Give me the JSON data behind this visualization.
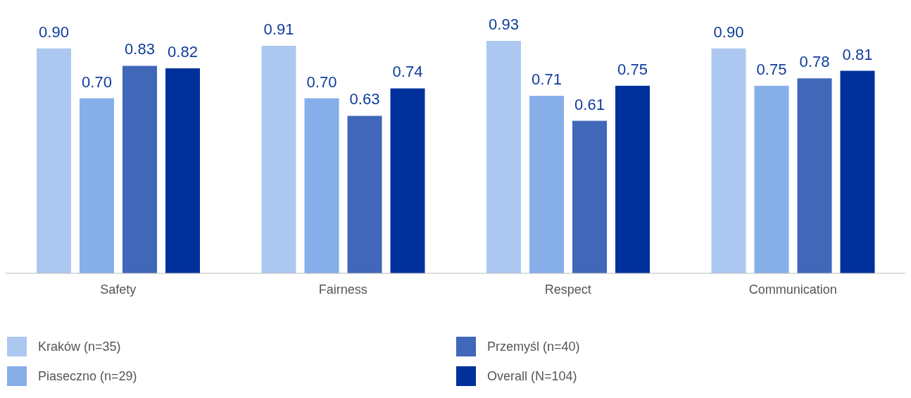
{
  "chart_data": {
    "type": "bar",
    "categories": [
      "Safety",
      "Fairness",
      "Respect",
      "Communication"
    ],
    "series": [
      {
        "name": "Kraków (n=35)",
        "color": "#adc8f0",
        "values": [
          0.9,
          0.91,
          0.93,
          0.9
        ],
        "value_labels": [
          "0.90",
          "0.91",
          "0.93",
          "0.90"
        ]
      },
      {
        "name": "Piaseczno (n=29)",
        "color": "#86aee9",
        "values": [
          0.7,
          0.7,
          0.71,
          0.75
        ],
        "value_labels": [
          "0.70",
          "0.70",
          "0.71",
          "0.75"
        ]
      },
      {
        "name": "Przemyśl (n=40)",
        "color": "#4067b8",
        "values": [
          0.83,
          0.63,
          0.61,
          0.78
        ],
        "value_labels": [
          "0.83",
          "0.63",
          "0.61",
          "0.78"
        ]
      },
      {
        "name": "Overall (N=104)",
        "color": "#00309c",
        "values": [
          0.82,
          0.74,
          0.75,
          0.81
        ],
        "value_labels": [
          "0.82",
          "0.74",
          "0.75",
          "0.81"
        ]
      }
    ],
    "tick_labels": "x",
    "grid": false,
    "legend": "bottom"
  }
}
